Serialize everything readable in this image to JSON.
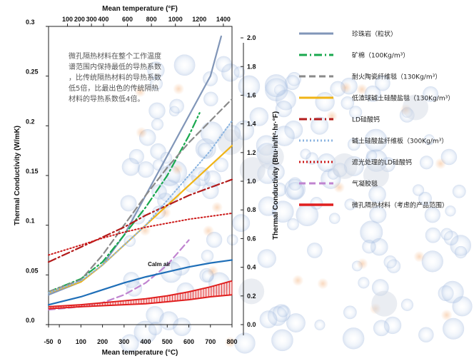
{
  "chart_data": {
    "type": "line",
    "title": "",
    "xlabel": "Mean temperature (°C)",
    "xlabel_top": "Mean temperature (°F)",
    "ylabel": "Thermal Conductivity (W/mK)",
    "ylabel_right": "Thermal Conductivity (Btu·in/ft²·hr·°F)",
    "xlim": [
      -50,
      800
    ],
    "ylim": [
      0,
      0.3
    ],
    "x_ticks": [
      "-50",
      "0",
      "100",
      "200",
      "300",
      "400",
      "500",
      "600",
      "700",
      "800"
    ],
    "y_ticks": [
      "0.0",
      "0.05",
      "0.1",
      "0.15",
      "0.2",
      "0.25",
      "0.3"
    ],
    "x_top_ticks": [
      "100",
      "200",
      "300",
      "400",
      "600",
      "800",
      "1000",
      "1200",
      "1400"
    ],
    "y_right_ticks": [
      "0.0",
      "0.2",
      "0.4",
      "0.6",
      "0.8",
      "1.0",
      "1.2",
      "1.4",
      "1.6",
      "1.8",
      "2.0"
    ],
    "annotation": "微孔隔热材料在整个工作温度谱范围内保持最低的导热系数，比传统隔热材料的导热系数低5倍，比最出色的传统隔热材料的导热系数低4倍。",
    "calm_air_label": "Calm air",
    "grid": false,
    "legend_position": "right",
    "series": [
      {
        "name": "珍珠岩（粒状）",
        "color": "#8196b8",
        "style": "solid",
        "x": [
          -50,
          100,
          200,
          300,
          400,
          500,
          600,
          700,
          750
        ],
        "y": [
          0.03,
          0.043,
          0.06,
          0.09,
          0.13,
          0.17,
          0.21,
          0.25,
          0.29
        ]
      },
      {
        "name": "矿棉（100Kg/m³）",
        "color": "#19a84e",
        "style": "dashdot",
        "x": [
          -50,
          100,
          200,
          300,
          400,
          500,
          600,
          650
        ],
        "y": [
          0.033,
          0.046,
          0.063,
          0.09,
          0.118,
          0.15,
          0.19,
          0.213
        ]
      },
      {
        "name": "耐火陶瓷纤维毯（130Kg/m³）",
        "color": "#8a8a8a",
        "style": "dashed",
        "x": [
          -50,
          100,
          200,
          300,
          400,
          500,
          600,
          700,
          800
        ],
        "y": [
          0.033,
          0.045,
          0.07,
          0.1,
          0.13,
          0.158,
          0.183,
          0.205,
          0.227
        ]
      },
      {
        "name": "低渣球碱土硅酸盐毯（130Kg/m³）",
        "color": "#f0b416",
        "style": "solid",
        "x": [
          -50,
          100,
          200,
          300,
          400,
          500,
          600,
          700,
          800
        ],
        "y": [
          0.032,
          0.043,
          0.06,
          0.08,
          0.1,
          0.12,
          0.14,
          0.16,
          0.18
        ]
      },
      {
        "name": "LD硅酸钙",
        "color": "#b31b1b",
        "style": "dashdot",
        "x": [
          -50,
          100,
          200,
          300,
          400,
          500,
          600,
          700,
          800
        ],
        "y": [
          0.063,
          0.078,
          0.088,
          0.098,
          0.11,
          0.12,
          0.13,
          0.138,
          0.146
        ]
      },
      {
        "name": "碱土硅酸盐纤维板（300Kg/m³）",
        "color": "#8ab4e0",
        "style": "dotted",
        "x": [
          -50,
          100,
          200,
          300,
          400,
          500,
          600,
          700,
          800
        ],
        "y": [
          0.032,
          0.044,
          0.06,
          0.08,
          0.1,
          0.125,
          0.15,
          0.175,
          0.205
        ]
      },
      {
        "name": "遮光处理的LD硅酸钙",
        "color": "#cc1a1a",
        "style": "dotted",
        "x": [
          -50,
          100,
          200,
          300,
          400,
          500,
          600,
          700,
          800
        ],
        "y": [
          0.07,
          0.08,
          0.087,
          0.093,
          0.098,
          0.102,
          0.106,
          0.109,
          0.112
        ]
      },
      {
        "name": "气凝胶毯",
        "color": "#c084d0",
        "style": "dashed",
        "x": [
          -50,
          100,
          200,
          300,
          400,
          500,
          600
        ],
        "y": [
          0.015,
          0.018,
          0.022,
          0.03,
          0.042,
          0.06,
          0.085
        ]
      },
      {
        "name": "Calm air",
        "color": "#1f6fb8",
        "style": "solid",
        "legend": false,
        "x": [
          -50,
          100,
          200,
          300,
          400,
          500,
          600,
          700,
          800
        ],
        "y": [
          0.02,
          0.028,
          0.035,
          0.042,
          0.048,
          0.053,
          0.058,
          0.062,
          0.065
        ]
      },
      {
        "name": "微孔隔热材料（考虑的产品范围）",
        "color": "#e01f1f",
        "style": "band",
        "x": [
          -50,
          100,
          200,
          300,
          400,
          500,
          600,
          700,
          800
        ],
        "y_low": [
          0.016,
          0.018,
          0.019,
          0.02,
          0.021,
          0.023,
          0.025,
          0.028,
          0.03
        ],
        "y_high": [
          0.018,
          0.02,
          0.022,
          0.024,
          0.026,
          0.029,
          0.033,
          0.038,
          0.044
        ]
      }
    ]
  }
}
